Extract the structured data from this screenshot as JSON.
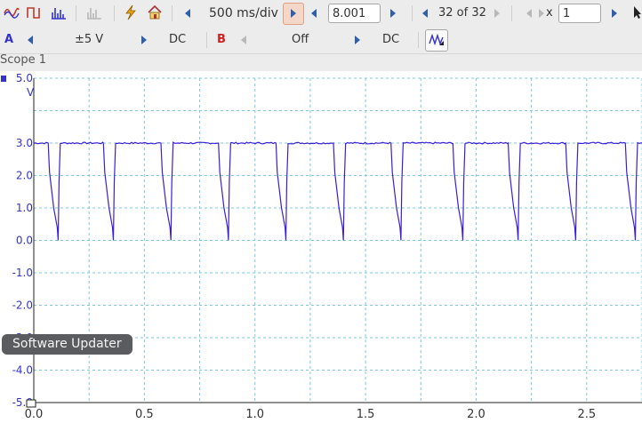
{
  "toolbar": {
    "timebase": "500 ms/div",
    "samples": "8.001 kS",
    "capture": "32 of 32",
    "zoom_prefix": "x",
    "zoom_value": "1"
  },
  "channels": {
    "a": {
      "name": "A",
      "range": "±5 V",
      "coupling": "DC",
      "color": "#3333cc"
    },
    "b": {
      "name": "B",
      "range": "Off",
      "coupling": "DC",
      "color": "#d02020"
    }
  },
  "scope": {
    "title": "Scope 1",
    "unit": "V",
    "trace_color": "#3a1fd6",
    "grid_color": "#7ec8d8"
  },
  "tooltip": "Software Updater",
  "icons": [
    "scope-mode-icon",
    "persistence-icon",
    "spectrum-icon",
    "measure-icon",
    "signal-generator-icon",
    "home-icon",
    "channel-options-icon",
    "pointer-icon"
  ],
  "chart_data": {
    "type": "line",
    "x_ticks": [
      "0.0",
      "0.5",
      "1.0",
      "1.5",
      "2.0",
      "2.5"
    ],
    "y_ticks": [
      "5.0",
      "3.0",
      "2.0",
      "1.0",
      "0.0",
      "-1.0",
      "-2.0",
      "-3.0",
      "-4.0",
      "-5.0"
    ],
    "xlim": [
      0,
      2.75
    ],
    "ylim": [
      -5,
      5
    ],
    "high_level": 3.0,
    "low_level": 0.0,
    "dip_times": [
      0.11,
      0.36,
      0.62,
      0.88,
      1.14,
      1.4,
      1.66,
      1.94,
      2.19,
      2.45,
      2.72
    ],
    "grid": true
  }
}
